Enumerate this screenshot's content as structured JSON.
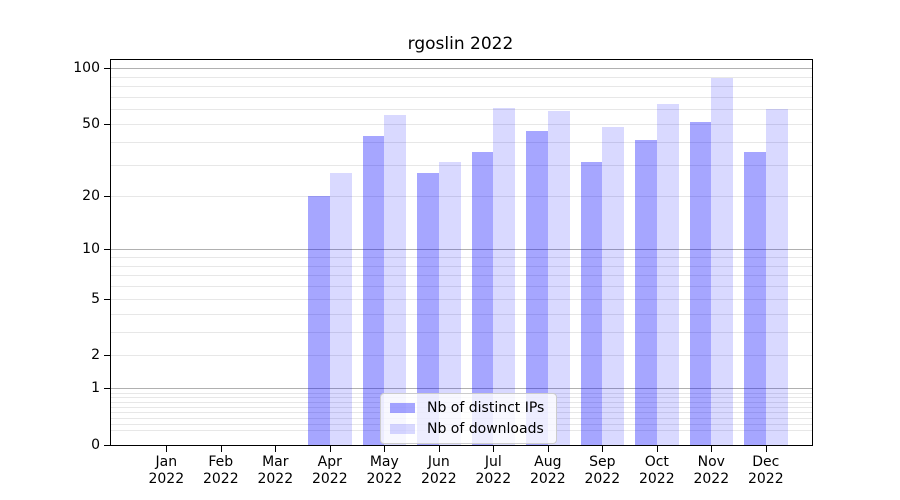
{
  "figure": {
    "background": "#ffffff",
    "title": "rgoslin 2022"
  },
  "chart_data": {
    "type": "bar",
    "title": "rgoslin 2022",
    "categories": [
      "Jan 2022",
      "Feb 2022",
      "Mar 2022",
      "Apr 2022",
      "May 2022",
      "Jun 2022",
      "Jul 2022",
      "Aug 2022",
      "Sep 2022",
      "Oct 2022",
      "Nov 2022",
      "Dec 2022"
    ],
    "series": [
      {
        "name": "Nb of distinct IPs",
        "color": "rgba(0,0,255,0.35)",
        "values": [
          null,
          null,
          null,
          20,
          43,
          27,
          35,
          46,
          31,
          41,
          51,
          35
        ]
      },
      {
        "name": "Nb of downloads",
        "color": "rgba(0,0,255,0.15)",
        "values": [
          null,
          null,
          null,
          27,
          56,
          31,
          61,
          59,
          48,
          64,
          88,
          60
        ]
      }
    ],
    "xlabel": "",
    "ylabel": "",
    "yscale": "log1p",
    "ylim": [
      0,
      110
    ],
    "yticks": [
      0,
      1,
      2,
      5,
      10,
      20,
      50,
      100
    ],
    "major_grid_values": [
      1,
      10,
      100
    ],
    "minor_grid_values": [
      0.2,
      0.3,
      0.4,
      0.5,
      0.6,
      0.7,
      0.8,
      0.9,
      2,
      3,
      4,
      5,
      6,
      7,
      8,
      9,
      20,
      30,
      40,
      50,
      60,
      70,
      80,
      90
    ],
    "grid": true,
    "legend_position": "lower center",
    "colors": {
      "spine": "#000000",
      "major_grid": "#b0b0b0",
      "minor_grid": "#e7e7e7",
      "legend_border": "#cccccc",
      "legend_background": "rgba(255,255,255,0.8)"
    }
  }
}
